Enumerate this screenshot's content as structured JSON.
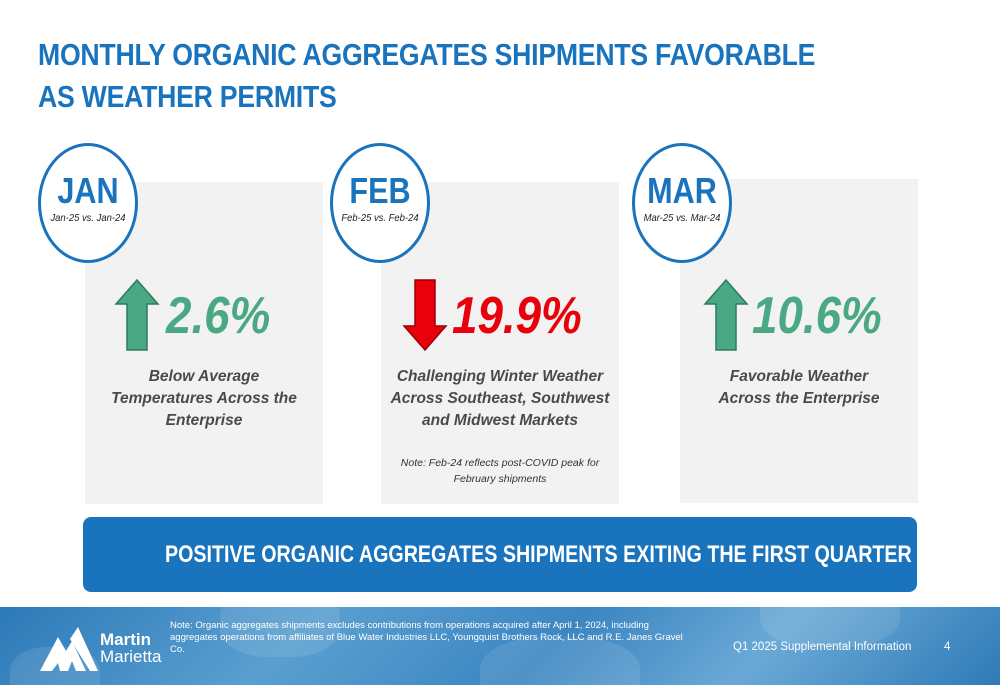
{
  "title": "MONTHLY ORGANIC AGGREGATES SHIPMENTS FAVORABLE AS WEATHER PERMITS",
  "months": [
    {
      "month": "JAN",
      "period": "Jan-25 vs. Jan-24",
      "direction": "up",
      "arrow_color": "#4aa984",
      "change": "2.6%",
      "description": [
        "Below Average",
        "Temperatures Across the",
        "Enterprise"
      ]
    },
    {
      "month": "FEB",
      "period": "Feb-25 vs. Feb-24",
      "direction": "down",
      "arrow_color": "#e8000b",
      "change": "19.9%",
      "description": [
        "Challenging Winter Weather",
        "Across Southeast, Southwest",
        "and Midwest Markets"
      ],
      "note": [
        "Note: Feb-24 reflects post-COVID peak for",
        "February shipments"
      ]
    },
    {
      "month": "MAR",
      "period": "Mar-25 vs. Mar-24",
      "direction": "up",
      "arrow_color": "#4aa984",
      "change": "10.6%",
      "description": [
        "Favorable Weather",
        "Across the Enterprise"
      ]
    }
  ],
  "banner": "POSITIVE ORGANIC AGGREGATES SHIPMENTS EXITING THE FIRST QUARTER",
  "footer": {
    "logo_line1": "Martin",
    "logo_line2": "Marietta",
    "note": "Note: Organic aggregates shipments excludes contributions from operations acquired after April 1, 2024, including aggregates operations from affiliates of Blue Water Industries LLC, Youngquist Brothers Rock, LLC and R.E. Janes Gravel Co.",
    "supplemental": "Q1 2025 Supplemental Information",
    "page_number": "4"
  },
  "colors": {
    "brand_blue": "#1a73bd",
    "panel_gray": "#f2f2f2"
  }
}
